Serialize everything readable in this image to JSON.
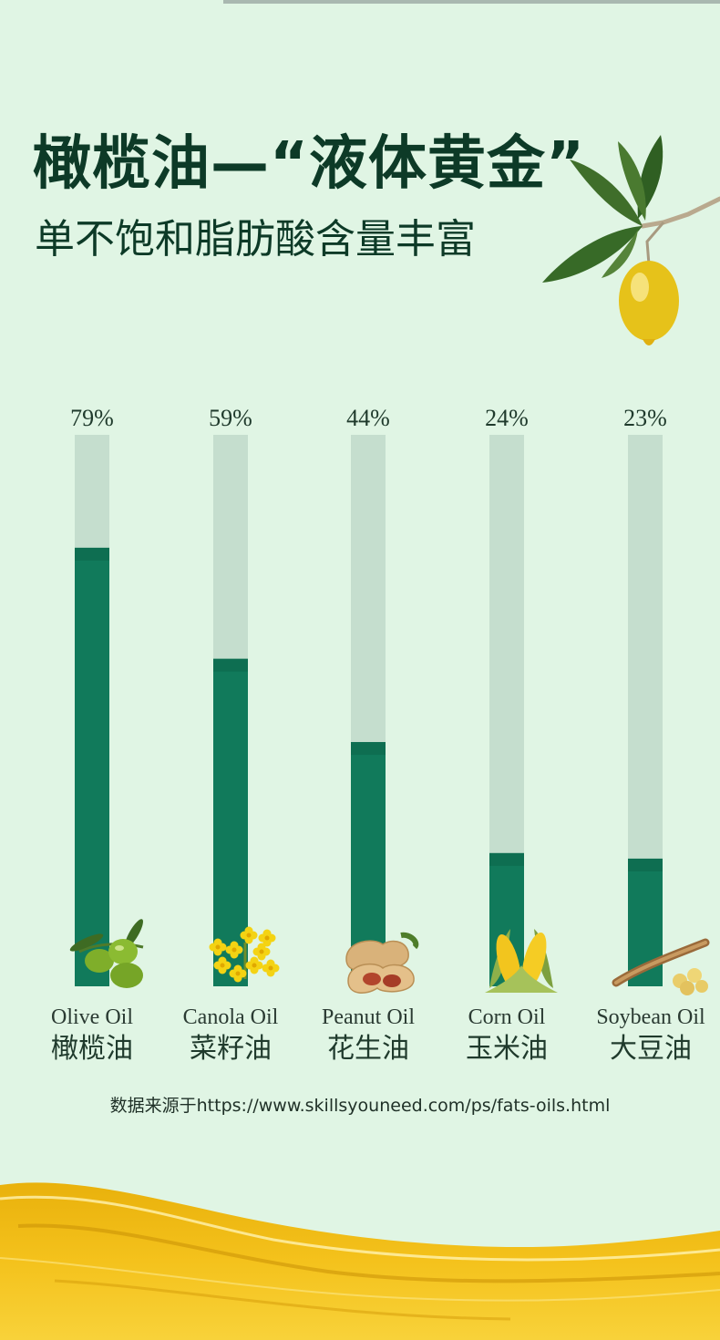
{
  "header": {
    "title": "橄榄油—“液体黄金”",
    "subtitle": "单不饱和脂肪酸含量丰富"
  },
  "chart_data": {
    "type": "bar",
    "categories": [
      "Olive Oil",
      "Canola Oil",
      "Peanut Oil",
      "Corn Oil",
      "Soybean Oil"
    ],
    "categories_zh": [
      "橄榄油",
      "菜籽油",
      "花生油",
      "玉米油",
      "大豆油"
    ],
    "values": [
      79,
      59,
      44,
      24,
      23
    ],
    "value_labels": [
      "79%",
      "59%",
      "44%",
      "24%",
      "23%"
    ],
    "ylim": [
      0,
      100
    ],
    "grid": false,
    "bar_color": "#117a5b",
    "track_color": "#c5dece",
    "icons": [
      "olives-icon",
      "canola-flower-icon",
      "peanut-icon",
      "corn-icon",
      "soybean-icon"
    ]
  },
  "source": "数据来源于https://www.skillsyouneed.com/ps/fats-oils.html",
  "colors": {
    "background": "#e0f5e4",
    "title": "#0d3a27",
    "oil": "#f0b915"
  }
}
